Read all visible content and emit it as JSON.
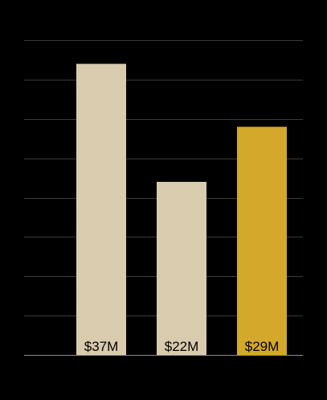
{
  "chart_data": {
    "type": "bar",
    "categories": [
      "",
      "",
      ""
    ],
    "values": [
      37,
      22,
      29
    ],
    "data_labels": [
      "$37M",
      "$22M",
      "$29M"
    ],
    "ylim": [
      0,
      40
    ],
    "grid": true,
    "colors": {
      "background": "#000000",
      "gridline": "#3a3a3a",
      "axis": "#8c8c8c",
      "bar_default": "#d9cbae",
      "bar_highlight": "#d4a82a"
    },
    "highlight_index": 2
  }
}
